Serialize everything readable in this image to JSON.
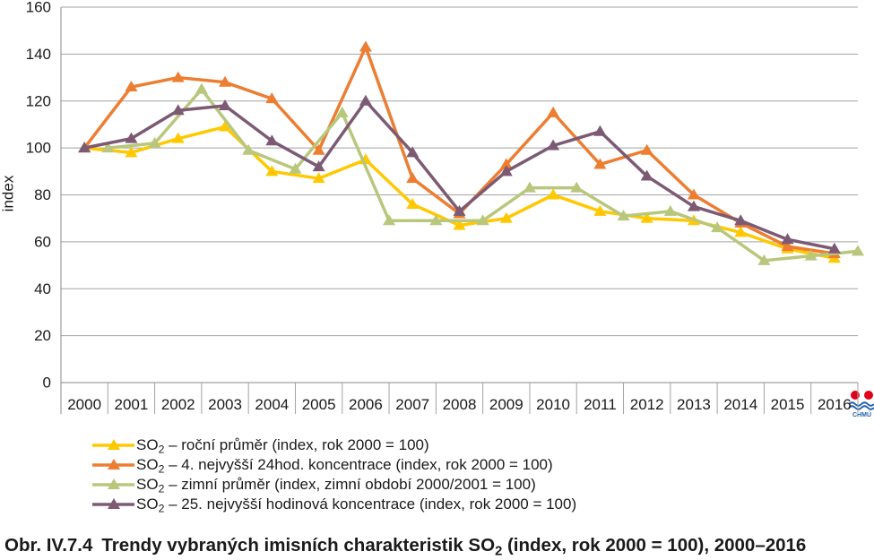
{
  "chart_data": {
    "type": "line",
    "ylabel": "index",
    "categories": [
      "2000",
      "2001",
      "2002",
      "2003",
      "2004",
      "2005",
      "2006",
      "2007",
      "2008",
      "2009",
      "2010",
      "2011",
      "2012",
      "2013",
      "2014",
      "2015",
      "2016"
    ],
    "ylim": [
      0,
      160
    ],
    "yticks": [
      0,
      20,
      40,
      60,
      80,
      100,
      120,
      140,
      160
    ],
    "grid": "horizontal",
    "legend": "bottom-left",
    "series": [
      {
        "name": "SO2 – roční průměr (index, rok 2000 = 100)",
        "color": "#FFC800",
        "marker": "triangle",
        "x": [
          2000,
          2001,
          2002,
          2003,
          2004,
          2005,
          2006,
          2007,
          2008,
          2009,
          2010,
          2011,
          2012,
          2013,
          2014,
          2015,
          2016
        ],
        "values": [
          100,
          98,
          104,
          109,
          90,
          87,
          95,
          76,
          67,
          70,
          80,
          73,
          70,
          69,
          64,
          57,
          53
        ]
      },
      {
        "name": "SO2 – 4. nejvyšší 24hod. koncentrace (index, rok 2000 = 100)",
        "color": "#ED7D31",
        "marker": "triangle",
        "x": [
          2000,
          2001,
          2002,
          2003,
          2004,
          2005,
          2006,
          2007,
          2008,
          2009,
          2010,
          2011,
          2012,
          2013,
          2014,
          2015,
          2016
        ],
        "values": [
          100,
          126,
          130,
          128,
          121,
          99,
          143,
          87,
          72,
          93,
          115,
          93,
          99,
          80,
          68,
          58,
          55
        ]
      },
      {
        "name": "SO2 – zimní průměr (index, zimní období 2000/2001 = 100)",
        "color": "#B8C77C",
        "marker": "triangle",
        "x": [
          2000.5,
          2001.5,
          2002.5,
          2003.5,
          2004.5,
          2005.5,
          2006.5,
          2007.5,
          2008.5,
          2009.5,
          2010.5,
          2011.5,
          2012.5,
          2013.5,
          2014.5,
          2015.5,
          2016.5
        ],
        "values": [
          100,
          102,
          125,
          99,
          91,
          115,
          69,
          69,
          69,
          83,
          83,
          71,
          73,
          66,
          52,
          54,
          56
        ]
      },
      {
        "name": "SO2 – 25. nejvyšší hodinová koncentrace (index, rok 2000 = 100)",
        "color": "#7D5A73",
        "marker": "triangle",
        "x": [
          2000,
          2001,
          2002,
          2003,
          2004,
          2005,
          2006,
          2007,
          2008,
          2009,
          2010,
          2011,
          2012,
          2013,
          2014,
          2015,
          2016
        ],
        "values": [
          100,
          104,
          116,
          118,
          103,
          92,
          120,
          98,
          73,
          90,
          101,
          107,
          88,
          75,
          69,
          61,
          57
        ]
      }
    ]
  },
  "caption": {
    "number": "Obr. IV.7.4",
    "text": "Trendy vybraných imisních charakteristik SO2 (index, rok 2000 = 100), 2000–2016"
  },
  "logo": {
    "text": "CHMÚ",
    "colors": [
      "#E2001A",
      "#1F5FAE"
    ]
  }
}
